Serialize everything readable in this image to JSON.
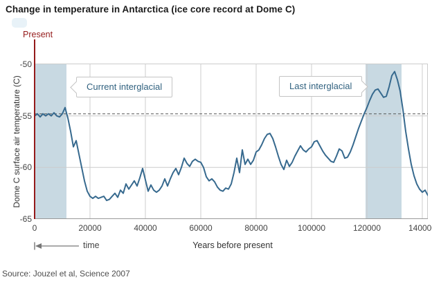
{
  "page": {
    "title": "Change in temperature in Antarctica (ice core record at Dome C)",
    "source": "Source: Jouzel et al, Science 2007"
  },
  "chart_data": {
    "type": "line",
    "title": "Change in temperature in Antarctica (ice core record at Dome C)",
    "xlabel": "Years before present",
    "ylabel": "Dome C surface air temperature (C)",
    "xlim": [
      0,
      142000
    ],
    "ylim": [
      -65,
      -50
    ],
    "grid": true,
    "legend": "none",
    "x_ticks": [
      0,
      20000,
      40000,
      60000,
      80000,
      100000,
      120000,
      140000
    ],
    "x_tick_labels": [
      "0",
      "20000",
      "40000",
      "60000",
      "80000",
      "100000",
      "120000",
      "140000"
    ],
    "y_ticks": [
      -50,
      -55,
      -60,
      -65
    ],
    "y_tick_labels": [
      "-50",
      "-55",
      "-60",
      "-65"
    ],
    "reference_line": {
      "y": -54.8,
      "style": "dashed"
    },
    "bands": [
      {
        "label": "Current interglacial",
        "from": 0,
        "to": 11500
      },
      {
        "label": "Last interglacial",
        "from": 119500,
        "to": 132500
      }
    ],
    "annotations": {
      "present_label": "Present",
      "present_x": 0,
      "time_label": "time"
    },
    "series": [
      {
        "name": "Dome C surface air temperature",
        "x_start": 0,
        "x_step": 1000,
        "values": [
          -55.0,
          -54.8,
          -55.1,
          -54.8,
          -55.0,
          -54.8,
          -55.0,
          -54.7,
          -55.0,
          -55.1,
          -54.8,
          -54.2,
          -55.2,
          -56.5,
          -58.0,
          -57.4,
          -58.7,
          -60.0,
          -61.3,
          -62.3,
          -62.8,
          -63.0,
          -62.8,
          -63.0,
          -62.9,
          -62.8,
          -63.2,
          -63.1,
          -62.8,
          -62.5,
          -62.9,
          -62.2,
          -62.5,
          -61.6,
          -62.1,
          -61.7,
          -61.3,
          -61.8,
          -61.0,
          -60.1,
          -61.2,
          -62.3,
          -61.7,
          -62.2,
          -62.4,
          -62.2,
          -61.8,
          -61.1,
          -61.8,
          -61.1,
          -60.5,
          -60.1,
          -60.7,
          -60.0,
          -59.1,
          -59.6,
          -59.9,
          -59.4,
          -59.2,
          -59.4,
          -59.5,
          -60.0,
          -60.9,
          -61.3,
          -61.1,
          -61.4,
          -61.9,
          -62.2,
          -62.3,
          -62.0,
          -62.1,
          -61.6,
          -60.5,
          -59.1,
          -60.5,
          -58.3,
          -59.7,
          -59.2,
          -59.7,
          -59.3,
          -58.5,
          -58.3,
          -57.8,
          -57.2,
          -56.8,
          -56.7,
          -57.2,
          -58.0,
          -58.9,
          -59.7,
          -60.2,
          -59.3,
          -59.9,
          -59.5,
          -58.9,
          -58.4,
          -57.9,
          -58.3,
          -58.5,
          -58.2,
          -58.0,
          -57.5,
          -57.4,
          -57.9,
          -58.4,
          -58.8,
          -59.1,
          -59.4,
          -59.5,
          -58.9,
          -58.2,
          -58.4,
          -59.1,
          -59.0,
          -58.5,
          -57.8,
          -57.0,
          -56.2,
          -55.5,
          -54.8,
          -54.2,
          -53.5,
          -52.9,
          -52.5,
          -52.4,
          -52.8,
          -53.2,
          -53.1,
          -52.2,
          -51.1,
          -50.7,
          -51.5,
          -52.6,
          -54.4,
          -56.5,
          -58.2,
          -59.7,
          -60.8,
          -61.6,
          -62.1,
          -62.4,
          -62.2,
          -62.7
        ]
      }
    ],
    "colors": {
      "line": "#36698e",
      "band": "#c8d9e2",
      "present": "#941a1a",
      "callout_text": "#30617f",
      "grid": "#cccccc",
      "axis": "#999999",
      "dashed": "#555555"
    }
  }
}
